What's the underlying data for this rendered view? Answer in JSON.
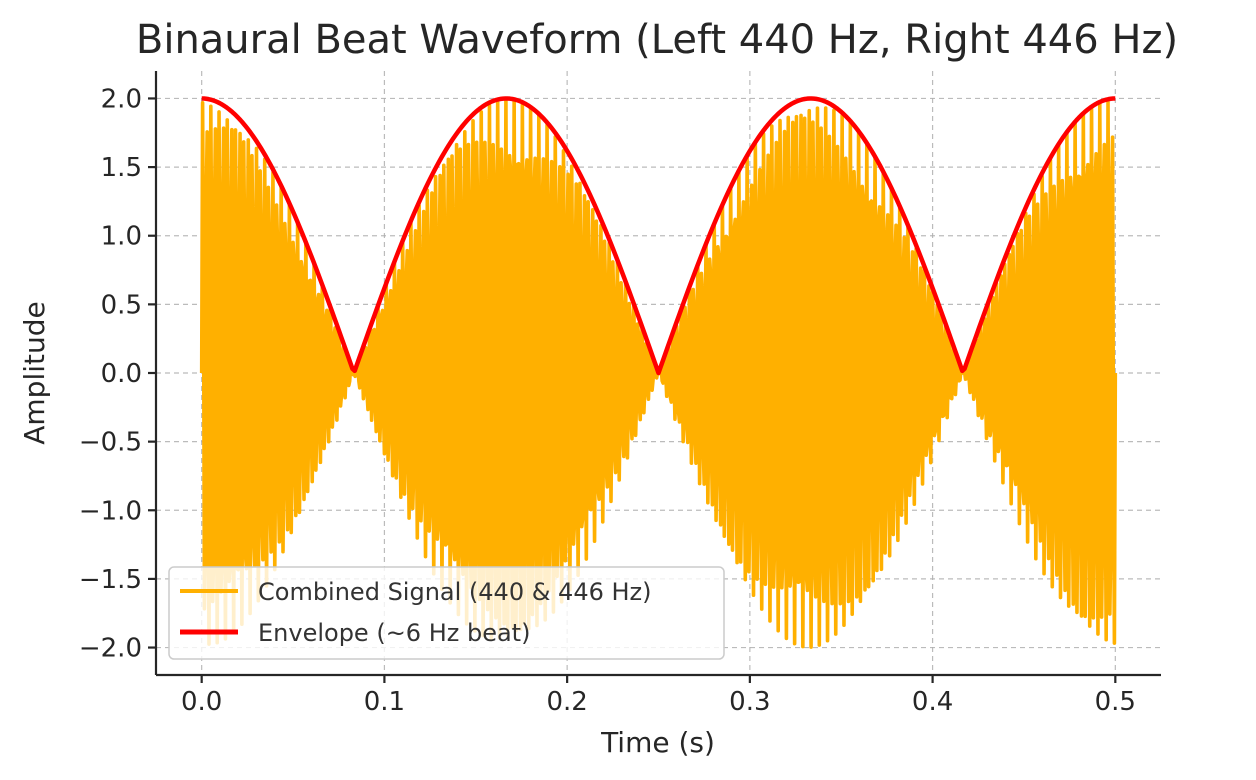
{
  "chart_data": {
    "type": "line",
    "title": "Binaural Beat Waveform (Left 440 Hz, Right 446 Hz)",
    "xlabel": "Time (s)",
    "ylabel": "Amplitude",
    "xlim": [
      -0.025,
      0.525
    ],
    "ylim": [
      -2.2,
      2.2
    ],
    "grid": true,
    "legend_position": "lower-left",
    "x_ticks": [
      0.0,
      0.1,
      0.2,
      0.3,
      0.4,
      0.5
    ],
    "x_tick_labels": [
      "0.0",
      "0.1",
      "0.2",
      "0.3",
      "0.4",
      "0.5"
    ],
    "y_ticks": [
      2.0,
      1.5,
      1.0,
      0.5,
      0.0,
      -0.5,
      -1.0,
      -1.5,
      -2.0
    ],
    "y_tick_labels": [
      "2.0",
      "1.5",
      "1.0",
      "0.5",
      "0.0",
      "−0.5",
      "−1.0",
      "−1.5",
      "−2.0"
    ],
    "series": [
      {
        "name": "Combined Signal (440 & 446 Hz)",
        "color": "#FFB000",
        "formula": "sin(2*pi*440*t) + sin(2*pi*446*t)",
        "t_start": 0.0,
        "t_end": 0.5,
        "samples": 1000
      },
      {
        "name": "Envelope (~6 Hz beat)",
        "color": "#FF0000",
        "formula": "|2*cos(pi*6*t)|",
        "t_start": 0.0,
        "t_end": 0.5,
        "samples": 400
      }
    ]
  }
}
